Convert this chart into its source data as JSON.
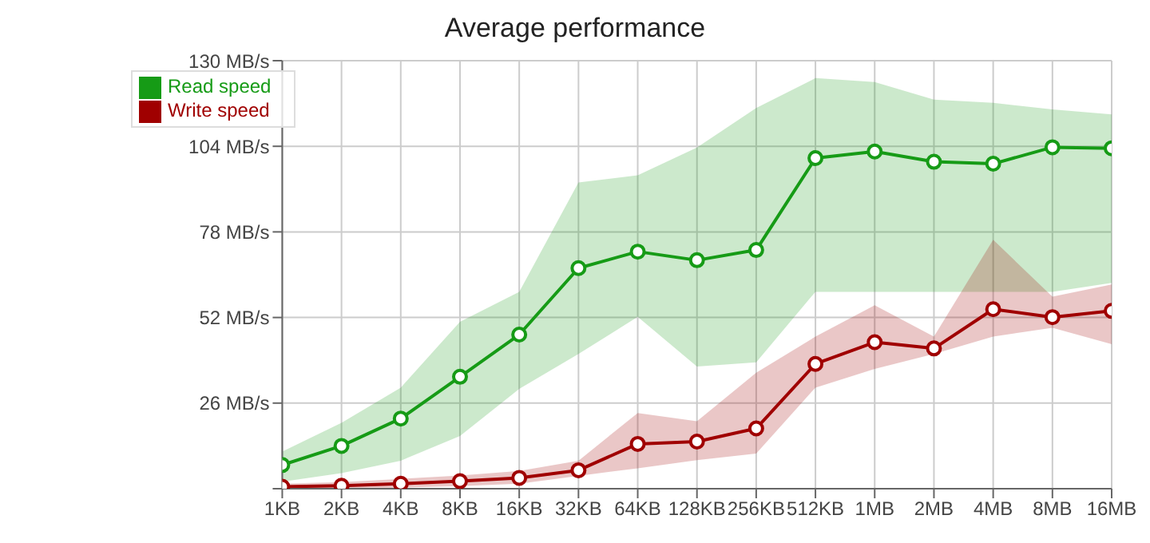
{
  "chart_data": {
    "type": "line",
    "title": "Average performance",
    "categories": [
      "1KB",
      "2KB",
      "4KB",
      "8KB",
      "16KB",
      "32KB",
      "64KB",
      "128KB",
      "256KB",
      "512KB",
      "1MB",
      "2MB",
      "4MB",
      "8MB",
      "16MB"
    ],
    "series": [
      {
        "name": "Read speed",
        "color": "#169b16",
        "values": [
          7.2,
          13,
          21.3,
          34,
          46.8,
          67,
          72,
          69.4,
          72.5,
          100.4,
          102.4,
          99.3,
          98.7,
          103.7,
          103.4
        ],
        "lower": [
          2.1,
          4.7,
          8.5,
          16,
          30.3,
          40.9,
          52.2,
          37.1,
          38.4,
          59.8,
          59.8,
          59.8,
          59.8,
          59.8,
          62.5
        ],
        "upper": [
          11.3,
          20,
          30.7,
          50.7,
          59.8,
          93,
          95.2,
          103.6,
          115.6,
          124.7,
          123.5,
          118.2,
          117.2,
          115.2,
          113.7
        ]
      },
      {
        "name": "Write speed",
        "color": "#a00000",
        "values": [
          0.6,
          0.9,
          1.5,
          2.3,
          3.3,
          5.6,
          13.6,
          14.3,
          18.3,
          37.9,
          44.5,
          42.6,
          54.5,
          52.1,
          54
        ],
        "lower": [
          0,
          0,
          0.3,
          0.8,
          1.5,
          3.9,
          6.2,
          8.7,
          10.7,
          30.7,
          36.4,
          40.9,
          46.2,
          48.9,
          43.9
        ],
        "upper": [
          1.5,
          2,
          3,
          4,
          5.4,
          8.5,
          23,
          20.5,
          35.2,
          46.2,
          55.7,
          46.2,
          75.6,
          58.3,
          62
        ]
      }
    ],
    "ylim": [
      0,
      130
    ],
    "yticks": [
      {
        "value": 0,
        "label": null
      },
      {
        "value": 26,
        "label": "26 MB/s"
      },
      {
        "value": 52,
        "label": "52 MB/s"
      },
      {
        "value": 78,
        "label": "78 MB/s"
      },
      {
        "value": 104,
        "label": "104 MB/s"
      },
      {
        "value": 130,
        "label": "130 MB/s"
      }
    ],
    "grid": true,
    "legend": "top left",
    "marker": "circle",
    "line_style": "solid"
  }
}
